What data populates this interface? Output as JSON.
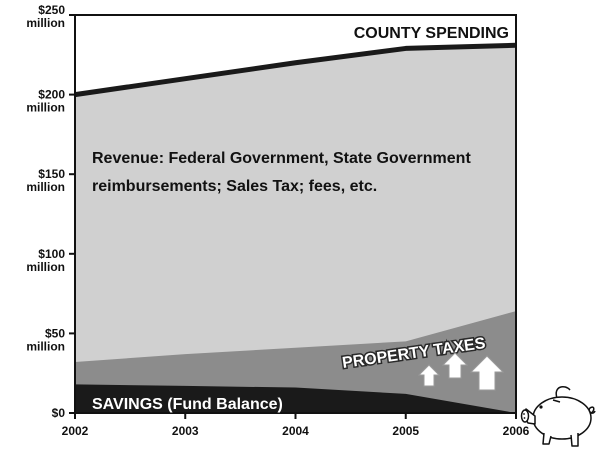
{
  "chart_data": {
    "type": "area",
    "x": [
      2002,
      2003,
      2004,
      2005,
      2006
    ],
    "x_tick_labels": [
      "2002",
      "2003",
      "2004",
      "2005",
      "2006"
    ],
    "y_tick_labels": [
      {
        "value": 0,
        "lines": [
          "$0"
        ]
      },
      {
        "value": 50,
        "lines": [
          "$50",
          "million"
        ]
      },
      {
        "value": 100,
        "lines": [
          "$100",
          "million"
        ]
      },
      {
        "value": 150,
        "lines": [
          "$150",
          "million"
        ]
      },
      {
        "value": 200,
        "lines": [
          "$200",
          "million"
        ]
      },
      {
        "value": 250,
        "lines": [
          "$250",
          "million"
        ]
      }
    ],
    "ylim": [
      0,
      250
    ],
    "xlim": [
      2002,
      2006
    ],
    "series": [
      {
        "name": "SAVINGS (Fund Balance)",
        "x": [
          2002,
          2003,
          2004,
          2005,
          2006
        ],
        "values": [
          18,
          17,
          16,
          12,
          0
        ],
        "color": "#1a1a1a"
      },
      {
        "name": "PROPERTY TAXES",
        "x": [
          2002,
          2003,
          2004,
          2005,
          2006
        ],
        "values": [
          32,
          37,
          41,
          45,
          64
        ],
        "color": "#8c8c8c"
      },
      {
        "name": "Revenue: Federal Government, State Government reimbursements; Sales Tax; fees, etc.",
        "x": [
          2002,
          2003,
          2004,
          2005,
          2006
        ],
        "values": [
          200,
          210,
          220,
          229,
          231
        ],
        "color": "#d0d0d0"
      },
      {
        "name": "COUNTY SPENDING",
        "x": [
          2002,
          2003,
          2004,
          2005,
          2006
        ],
        "values": [
          200,
          210,
          220,
          229,
          231
        ],
        "color": "#1a1a1a",
        "style": "line"
      }
    ],
    "annotations": {
      "county_spending": "COUNTY SPENDING",
      "revenue_line1": "Revenue: Federal Government, State Government",
      "revenue_line2": "reimbursements; Sales Tax; fees, etc.",
      "property_taxes": "PROPERTY TAXES",
      "savings": "SAVINGS (Fund Balance)"
    },
    "grid": false,
    "legend": "none",
    "icons": [
      "up-arrow-icon",
      "up-arrow-icon",
      "up-arrow-icon",
      "piggy-bank-icon"
    ]
  }
}
